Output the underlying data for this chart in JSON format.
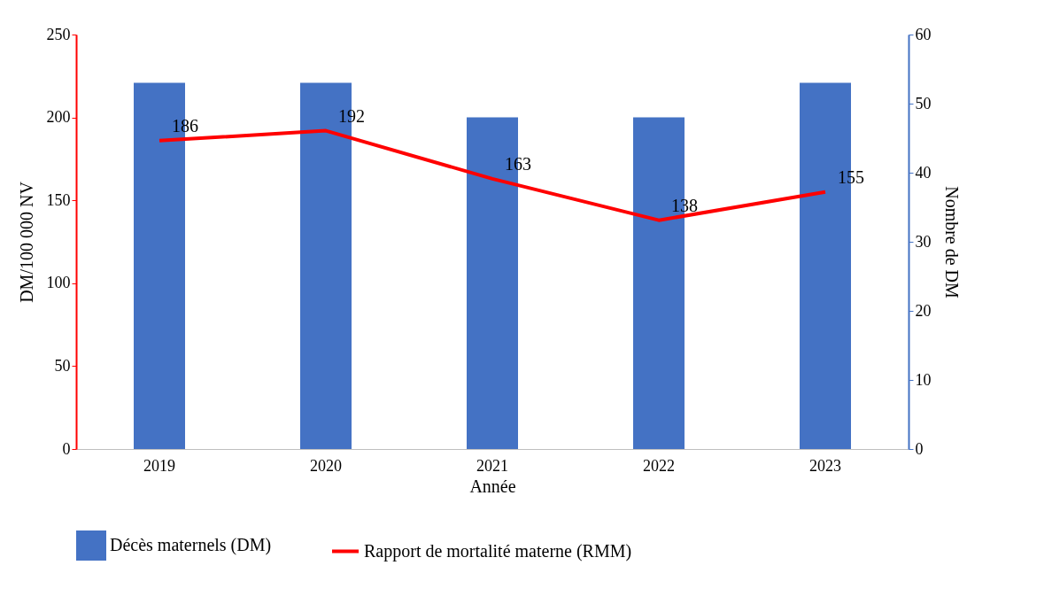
{
  "chart_data": {
    "type": "bar",
    "categories": [
      "2019",
      "2020",
      "2021",
      "2022",
      "2023"
    ],
    "xlabel": "Année",
    "ylabel": "DM/100 000 NV",
    "y2label": "Nombre de DM",
    "series": [
      {
        "name": "Décès maternels (DM)",
        "axis": "y2",
        "color": "#4472c4",
        "values": [
          53,
          53,
          48,
          48,
          53
        ]
      },
      {
        "name": "Rapport de mortalité materne (RMM)",
        "type": "line",
        "color": "#ff0000",
        "values": [
          186,
          192,
          163,
          138,
          155
        ],
        "value_labels": [
          "186",
          "192",
          "163",
          "138",
          "155"
        ]
      }
    ],
    "ylim": [
      0,
      250
    ],
    "yticks": [
      0,
      50,
      100,
      150,
      200,
      250
    ],
    "y2lim": [
      0,
      60
    ],
    "y2ticks": [
      0,
      10,
      20,
      30,
      40,
      50,
      60
    ],
    "grid": false,
    "legend": "bottom"
  }
}
